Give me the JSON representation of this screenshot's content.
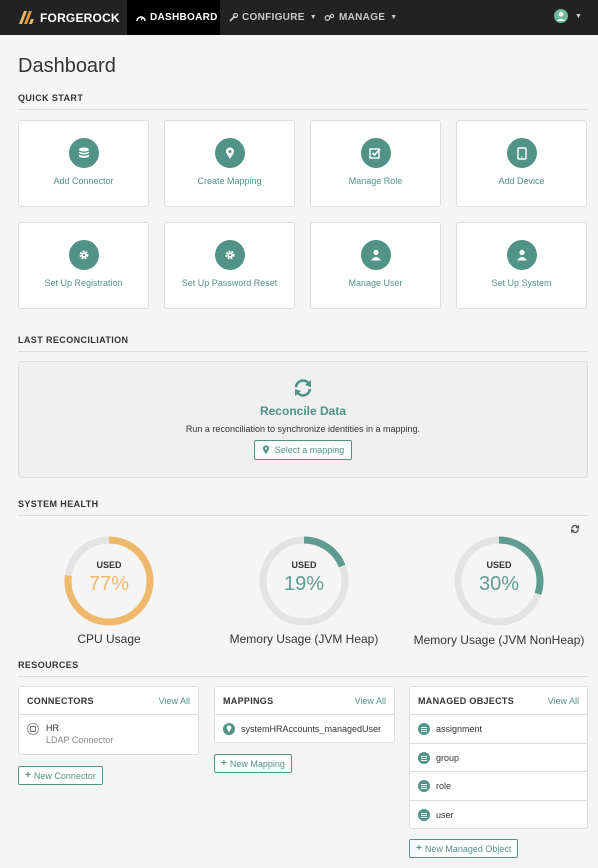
{
  "nav": {
    "brand": "FORGEROCK",
    "items": [
      {
        "label": "DASHBOARD",
        "icon": "dashboard-icon",
        "active": true
      },
      {
        "label": "CONFIGURE",
        "icon": "wrench-icon",
        "active": false
      },
      {
        "label": "MANAGE",
        "icon": "cogs-icon",
        "active": false
      }
    ]
  },
  "page": {
    "title": "Dashboard"
  },
  "quick_start": {
    "title": "QUICK START",
    "cards": [
      {
        "label": "Add Connector",
        "icon": "database-icon"
      },
      {
        "label": "Create Mapping",
        "icon": "map-marker-icon"
      },
      {
        "label": "Manage Role",
        "icon": "check-square-icon"
      },
      {
        "label": "Add Device",
        "icon": "tablet-icon"
      },
      {
        "label": "Set Up Registration",
        "icon": "gear-icon"
      },
      {
        "label": "Set Up Password Reset",
        "icon": "gear-icon"
      },
      {
        "label": "Manage User",
        "icon": "user-icon"
      },
      {
        "label": "Set Up System",
        "icon": "user-icon"
      }
    ]
  },
  "last_reconciliation": {
    "title": "LAST RECONCILIATION",
    "heading": "Reconcile Data",
    "description": "Run a reconciliation to synchronize identities in a mapping.",
    "button": "Select a mapping"
  },
  "system_health": {
    "title": "SYSTEM HEALTH",
    "gauges": [
      {
        "used_label": "USED",
        "value": "77%",
        "percent": 77,
        "name": "CPU Usage",
        "color": "#f0b86a"
      },
      {
        "used_label": "USED",
        "value": "19%",
        "percent": 19,
        "name": "Memory Usage (JVM Heap)",
        "color": "#5f9c8f"
      },
      {
        "used_label": "USED",
        "value": "30%",
        "percent": 30,
        "name": "Memory Usage (JVM NonHeap)",
        "color": "#5f9c8f"
      }
    ]
  },
  "resources": {
    "title": "RESOURCES",
    "connectors": {
      "title": "CONNECTORS",
      "view_all": "View All",
      "items": [
        {
          "name": "HR",
          "type": "LDAP Connector"
        }
      ],
      "button": "New Connector"
    },
    "mappings": {
      "title": "MAPPINGS",
      "view_all": "View All",
      "items": [
        "systemHRAccounts_managedUser"
      ],
      "button": "New Mapping"
    },
    "managed_objects": {
      "title": "MANAGED OBJECTS",
      "view_all": "View All",
      "items": [
        "assignment",
        "group",
        "role",
        "user"
      ],
      "button": "New Managed Object"
    }
  },
  "colors": {
    "accent": "#519387",
    "nav_bg": "#222222",
    "cpu": "#f0b86a"
  }
}
